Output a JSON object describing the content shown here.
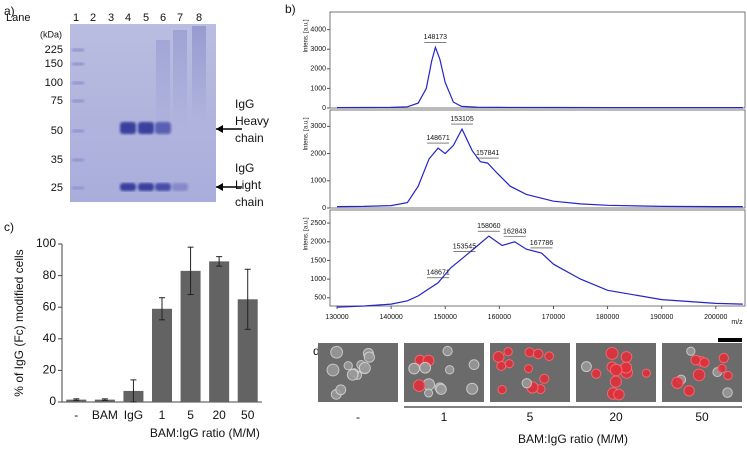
{
  "figure_labels": [
    "a)",
    "b)",
    "c)",
    "d)"
  ],
  "gel": {
    "lane_title": "Lane",
    "lanes": [
      1,
      2,
      3,
      4,
      5,
      6,
      7,
      8
    ],
    "unit": "(kDa)",
    "markers": [
      225,
      150,
      100,
      75,
      50,
      35,
      25
    ],
    "heavy_label": [
      "IgG",
      "Heavy",
      "chain"
    ],
    "light_label": [
      "IgG",
      "Light",
      "chain"
    ]
  },
  "chart_data": [
    {
      "type": "line",
      "y_label": "Intens. [a.u.]",
      "color": "#2424c8",
      "x": [
        130000,
        135000,
        140000,
        143000,
        145000,
        146500,
        147500,
        148173,
        149000,
        150000,
        151500,
        153000,
        156000,
        160000,
        170000,
        180000,
        190000,
        200000,
        205000
      ],
      "values": [
        20,
        25,
        30,
        60,
        250,
        1000,
        2400,
        3100,
        2500,
        1300,
        300,
        80,
        40,
        30,
        25,
        20,
        20,
        20,
        20
      ],
      "peak_labels": [
        148173
      ],
      "xlim": [
        128700,
        205400
      ],
      "ylim": [
        0,
        4900
      ],
      "yticks": [
        0,
        1000,
        2000,
        3000,
        4000
      ]
    },
    {
      "type": "line",
      "y_label": "Intens. [a.u.]",
      "color": "#2424c8",
      "x": [
        130000,
        135000,
        140000,
        143000,
        145000,
        147000,
        148671,
        150000,
        151500,
        153105,
        155000,
        156500,
        157841,
        159500,
        162000,
        165000,
        170000,
        175000,
        180000,
        190000,
        200000,
        205000
      ],
      "values": [
        50,
        60,
        90,
        200,
        800,
        1800,
        2200,
        2000,
        2300,
        2900,
        2100,
        1700,
        1650,
        1300,
        800,
        500,
        250,
        150,
        100,
        60,
        50,
        50
      ],
      "peak_labels": [
        148671,
        153105,
        157841
      ],
      "xlim": [
        128700,
        205400
      ],
      "ylim": [
        0,
        3600
      ],
      "yticks": [
        0,
        1000,
        2000,
        3000
      ]
    },
    {
      "type": "line",
      "y_label": "Intens. [a.u.]",
      "x_label": "m/z",
      "color": "#2424c8",
      "x": [
        130000,
        135000,
        140000,
        143000,
        145000,
        148671,
        151000,
        153545,
        156000,
        158060,
        160500,
        162843,
        165000,
        167786,
        170000,
        175000,
        180000,
        190000,
        200000,
        205000
      ],
      "values": [
        250,
        280,
        330,
        420,
        550,
        900,
        1300,
        1600,
        1900,
        2150,
        1900,
        2000,
        1800,
        1700,
        1400,
        1000,
        700,
        450,
        350,
        330
      ],
      "peak_labels": [
        148671,
        153545,
        158060,
        162843,
        167786
      ],
      "xlim": [
        128700,
        205400
      ],
      "ylim": [
        280,
        2850
      ],
      "yticks": [
        500,
        1000,
        1500,
        2000,
        2500
      ],
      "xticks": [
        130000,
        140000,
        150000,
        160000,
        170000,
        180000,
        190000,
        200000
      ]
    },
    {
      "type": "bar",
      "y_label": "% of IgG (Fc) modified cells",
      "group_label": "BAM:IgG ratio (M/M)",
      "color": "#636363",
      "categories": [
        "-",
        "BAM",
        "IgG",
        "1",
        "5",
        "20",
        "50"
      ],
      "values": [
        1.5,
        1.5,
        7,
        59,
        83,
        89,
        65
      ],
      "errors": [
        0.5,
        0.5,
        7,
        7,
        15,
        3,
        19
      ],
      "ylim": [
        0,
        100
      ],
      "yticks": [
        0,
        20,
        40,
        60,
        80,
        100
      ]
    }
  ],
  "microscopy": {
    "labels": [
      "-",
      "1",
      "5",
      "20",
      "50"
    ],
    "group_label": "BAM:IgG ratio (M/M)"
  }
}
